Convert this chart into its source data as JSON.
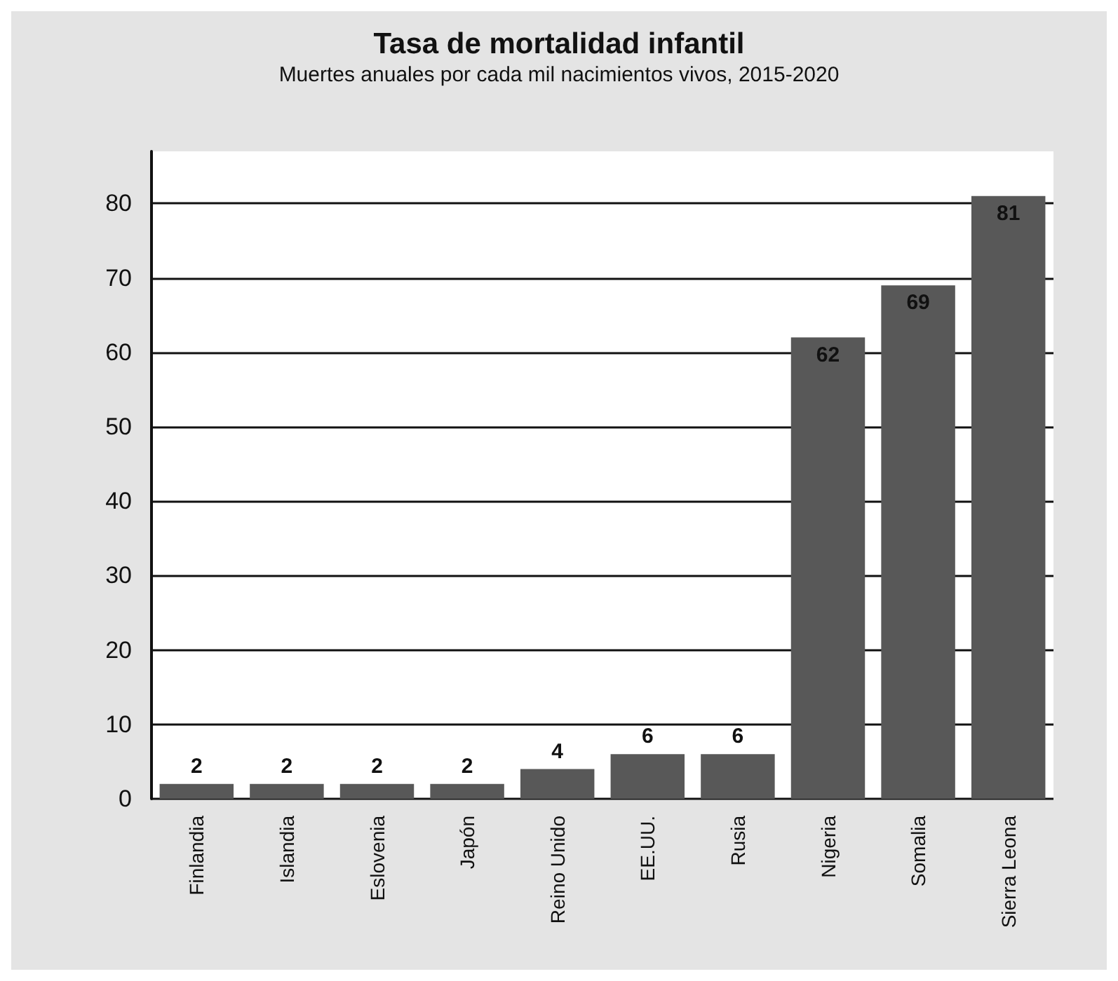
{
  "chart_data": {
    "type": "bar",
    "title": "Tasa de mortalidad infantil",
    "subtitle": "Muertes anuales por cada mil nacimientos vivos, 2015-2020",
    "categories": [
      "Finlandia",
      "Islandia",
      "Eslovenia",
      "Japón",
      "Reino Unido",
      "EE.UU.",
      "Rusia",
      "Nigeria",
      "Somalia",
      "Sierra Leona"
    ],
    "values": [
      2,
      2,
      2,
      2,
      4,
      6,
      6,
      62,
      69,
      81
    ],
    "color": "#585858",
    "ylim": [
      0,
      87
    ],
    "yticks": [
      0,
      10,
      20,
      30,
      40,
      50,
      60,
      70,
      80
    ],
    "grid": "y",
    "data_labels": true
  }
}
